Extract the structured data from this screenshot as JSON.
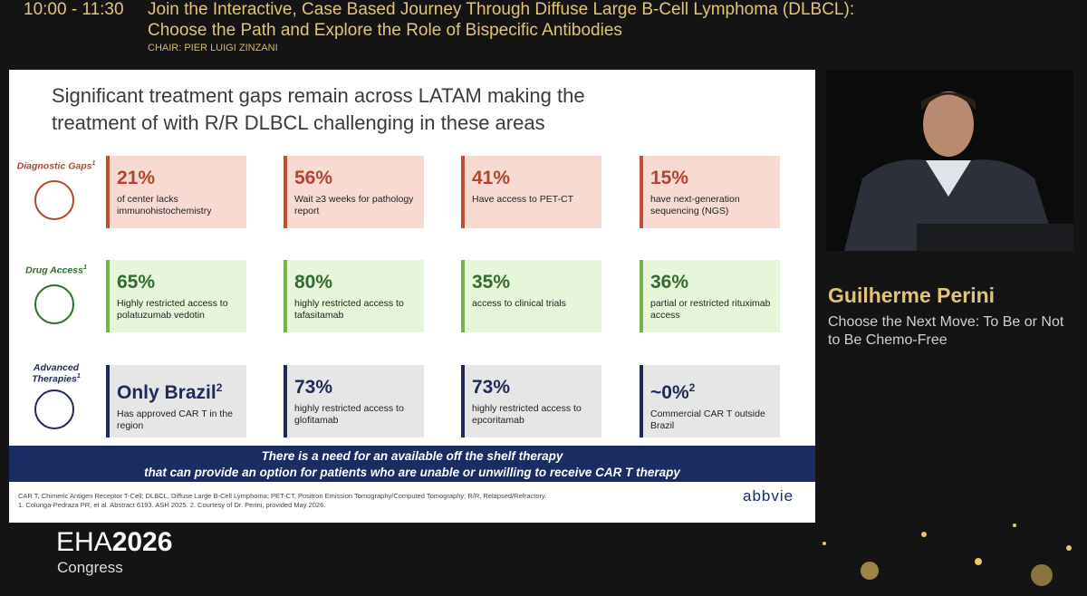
{
  "header": {
    "time": "10:00 - 11:30",
    "title": [
      "Join the Interactive, Case Based Journey Through Diffuse Large B-Cell Lymphoma (DLBCL):",
      "Choose the Path and Explore the Role of Bispecific Antibodies"
    ],
    "chair": "CHAIR: PIER LUIGI ZINZANI"
  },
  "slide": {
    "title": [
      "Significant treatment gaps remain across LATAM making the",
      "treatment of with R/R DLBCL challenging in these areas"
    ],
    "rows": [
      {
        "label": "Diagnostic Gaps",
        "sup": "1",
        "cards": [
          {
            "stat": "21%",
            "text": "of center lacks immunohistochemistry"
          },
          {
            "stat": "56%",
            "text": "Wait ≥3 weeks for pathology report"
          },
          {
            "stat": "41%",
            "text": "Have access to PET-CT"
          },
          {
            "stat": "15%",
            "text": "have next-generation sequencing (NGS)"
          }
        ]
      },
      {
        "label": "Drug Access",
        "sup": "1",
        "cards": [
          {
            "stat": "65%",
            "text": "Highly restricted access to polatuzumab vedotin"
          },
          {
            "stat": "80%",
            "text": "highly restricted access to tafasitamab"
          },
          {
            "stat": "35%",
            "text": "access to clinical trials"
          },
          {
            "stat": "36%",
            "text": "partial or restricted rituximab access"
          }
        ]
      },
      {
        "label": "Advanced Therapies",
        "sup": "1",
        "cards": [
          {
            "stat": "Only Brazil",
            "sup": "2",
            "text": "Has approved CAR T in the region"
          },
          {
            "stat": "73%",
            "text": "highly restricted access to glofitamab"
          },
          {
            "stat": "73%",
            "text": "highly restricted access to epcoritamab"
          },
          {
            "stat": "~0%",
            "sup": "2",
            "text": "Commercial CAR T outside Brazil"
          }
        ]
      }
    ],
    "banner": [
      "There is a need for an available off the shelf therapy",
      "that can provide an option for patients who are unable or unwilling to receive CAR T therapy"
    ],
    "footnotes": [
      "CAR T, Chimeric Antigen Receptor T-Cell; DLBCL, Diffuse Large B-Cell Lymphoma; PET-CT, Positron Emission Tomography/Computed Tomography; R/R, Relapsed/Refractory.",
      "1. Colunga-Pedraza PR, et al. Abstract 6193. ASH 2025. 2. Courtesy of Dr. Perini, provided May 2026."
    ],
    "logo": "abbvie"
  },
  "speaker": {
    "name": "Guilherme Perini",
    "talk": "Choose the Next Move: To Be or Not to Be Chemo-Free"
  },
  "event": {
    "name": "EHA",
    "year": "2026",
    "subtitle": "Congress"
  }
}
